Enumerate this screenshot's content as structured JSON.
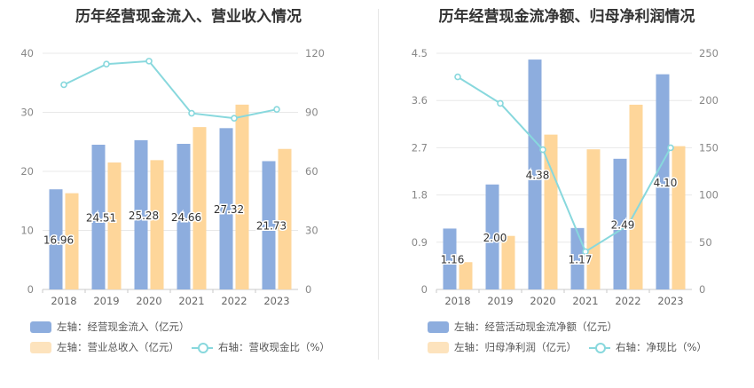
{
  "colors": {
    "blue": "#8dadde",
    "orange": "#fed69a",
    "line": "#88d8dd"
  },
  "charts": [
    {
      "title": "历年经营现金流入、营业收入情况",
      "legend": [
        "左轴：经营现金流入（亿元）",
        "左轴：营业总收入（亿元）",
        "右轴：营收现金比（%）"
      ]
    },
    {
      "title": "历年经营现金流净额、归母净利润情况",
      "legend": [
        "左轴：经营活动现金流净额（亿元）",
        "左轴：归母净利润（亿元）",
        "右轴：净现比（%）"
      ]
    }
  ],
  "chart_data": [
    {
      "type": "bar",
      "categories": [
        "2018",
        "2019",
        "2020",
        "2021",
        "2022",
        "2023"
      ],
      "series": [
        {
          "name": "左轴：经营现金流入（亿元）",
          "type": "bar",
          "axis": "left",
          "values": [
            16.96,
            24.51,
            25.28,
            24.66,
            27.32,
            21.73
          ],
          "labels": [
            "16.96",
            "24.51",
            "25.28",
            "24.66",
            "27.32",
            "21.73"
          ]
        },
        {
          "name": "左轴：营业总收入（亿元）",
          "type": "bar",
          "axis": "left",
          "values": [
            16.3,
            21.5,
            21.9,
            27.5,
            31.3,
            23.8
          ]
        },
        {
          "name": "右轴：营收现金比（%）",
          "type": "line",
          "axis": "right",
          "values": [
            104,
            114.5,
            116,
            89.5,
            87,
            91.5
          ]
        }
      ],
      "ylim_left": [
        0,
        40
      ],
      "yticks_left": [
        "0",
        "10",
        "20",
        "30",
        "40"
      ],
      "ylim_right": [
        0,
        120
      ],
      "yticks_right": [
        "0",
        "30",
        "60",
        "90",
        "120"
      ],
      "grid": true,
      "legend_position": "bottom-left"
    },
    {
      "type": "bar",
      "categories": [
        "2018",
        "2019",
        "2020",
        "2021",
        "2022",
        "2023"
      ],
      "series": [
        {
          "name": "左轴：经营活动现金流净额（亿元）",
          "type": "bar",
          "axis": "left",
          "values": [
            1.16,
            2.0,
            4.38,
            1.17,
            2.49,
            4.1
          ],
          "labels": [
            "1.16",
            "2.00",
            "4.38",
            "1.17",
            "2.49",
            "4.10"
          ]
        },
        {
          "name": "左轴：归母净利润（亿元）",
          "type": "bar",
          "axis": "left",
          "values": [
            0.52,
            1.02,
            2.95,
            2.67,
            3.52,
            2.73
          ]
        },
        {
          "name": "右轴：净现比（%）",
          "type": "line",
          "axis": "right",
          "values": [
            225,
            197,
            148,
            40,
            68,
            150
          ]
        }
      ],
      "ylim_left": [
        0,
        4.5
      ],
      "yticks_left": [
        "0",
        "0.9",
        "1.8",
        "2.7",
        "3.6",
        "4.5"
      ],
      "ylim_right": [
        0,
        250
      ],
      "yticks_right": [
        "0",
        "50",
        "100",
        "150",
        "200",
        "250"
      ],
      "grid": true,
      "legend_position": "bottom-left"
    }
  ]
}
